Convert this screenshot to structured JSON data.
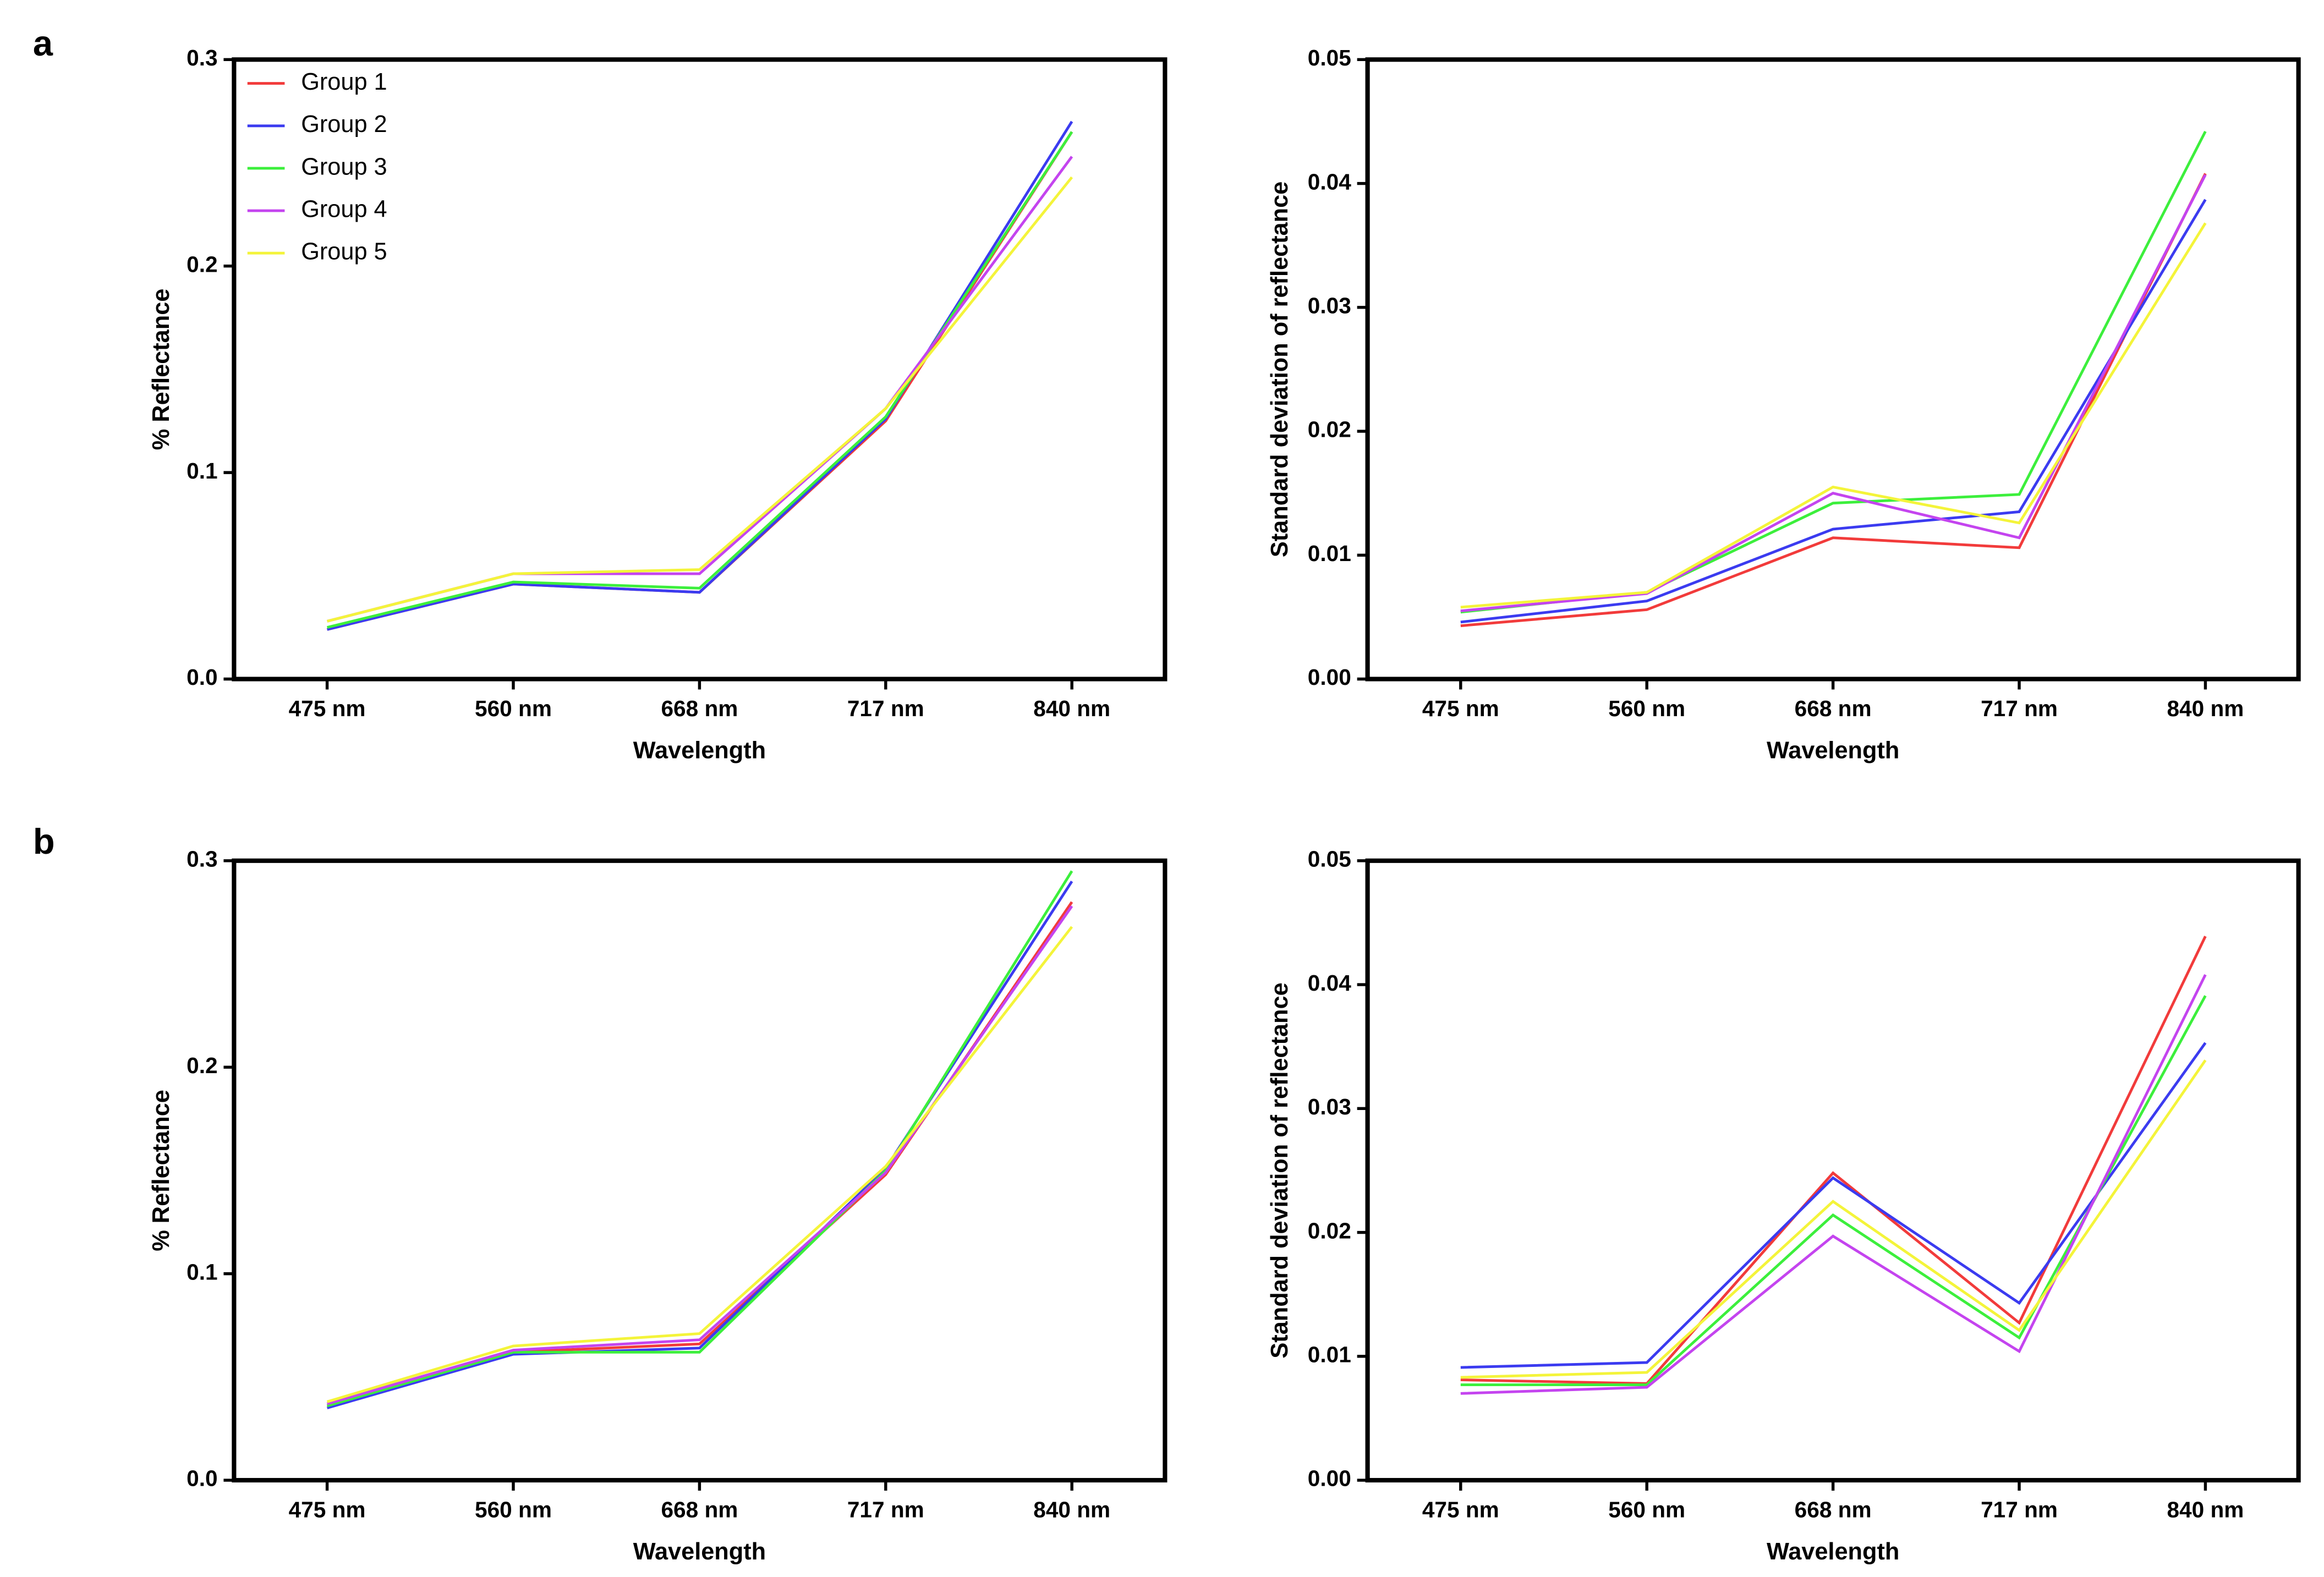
{
  "panel_labels": [
    "a",
    "b"
  ],
  "chart_data": [
    {
      "type": "line",
      "x_label": "Wavelength",
      "y_label": "% Reflectance",
      "categories": [
        "475 nm",
        "560 nm",
        "668 nm",
        "717 nm",
        "840 nm"
      ],
      "ylim": [
        0,
        0.3
      ],
      "yticks": [
        {
          "value": 0,
          "label": "0.0"
        },
        0.1,
        0.2,
        0.3
      ],
      "legend": "upper left",
      "series": [
        {
          "name": "Group 1",
          "color": "#f23b3b",
          "values": [
            0.024,
            0.046,
            0.042,
            0.125,
            0.265
          ]
        },
        {
          "name": "Group 2",
          "color": "#3b3bf0",
          "values": [
            0.024,
            0.046,
            0.042,
            0.126,
            0.27
          ]
        },
        {
          "name": "Group 3",
          "color": "#3cef3c",
          "values": [
            0.025,
            0.047,
            0.044,
            0.127,
            0.265
          ]
        },
        {
          "name": "Group 4",
          "color": "#c444ef",
          "values": [
            0.028,
            0.051,
            0.051,
            0.131,
            0.253
          ]
        },
        {
          "name": "Group 5",
          "color": "#f4f43a",
          "values": [
            0.028,
            0.051,
            0.053,
            0.131,
            0.243
          ]
        }
      ]
    },
    {
      "type": "line",
      "x_label": "Wavelength",
      "y_label": "Standard deviation of reflectance",
      "categories": [
        "475 nm",
        "560 nm",
        "668 nm",
        "717 nm",
        "840 nm"
      ],
      "ylim": [
        0,
        0.05
      ],
      "yticks": [
        {
          "value": 0,
          "label": "0.00"
        },
        0.01,
        0.02,
        0.03,
        0.04,
        0.05
      ],
      "series": [
        {
          "color": "#f23b3b",
          "values": [
            0.0043,
            0.0056,
            0.0114,
            0.0106,
            0.0408
          ]
        },
        {
          "color": "#3b3bf0",
          "values": [
            0.0046,
            0.0063,
            0.0121,
            0.0135,
            0.0387
          ]
        },
        {
          "color": "#3cef3c",
          "values": [
            0.0054,
            0.007,
            0.0142,
            0.0149,
            0.0442
          ]
        },
        {
          "color": "#c444ef",
          "values": [
            0.0055,
            0.0069,
            0.015,
            0.0114,
            0.0407
          ]
        },
        {
          "color": "#f4f43a",
          "values": [
            0.0058,
            0.007,
            0.0155,
            0.0126,
            0.0368
          ]
        }
      ]
    },
    {
      "type": "line",
      "x_label": "Wavelength",
      "y_label": "% Reflectance",
      "categories": [
        "475 nm",
        "560 nm",
        "668 nm",
        "717 nm",
        "840 nm"
      ],
      "ylim": [
        0,
        0.3
      ],
      "yticks": [
        {
          "value": 0,
          "label": "0.0"
        },
        0.1,
        0.2,
        0.3
      ],
      "series": [
        {
          "color": "#f23b3b",
          "values": [
            0.036,
            0.062,
            0.066,
            0.148,
            0.28
          ]
        },
        {
          "color": "#3b3bf0",
          "values": [
            0.035,
            0.061,
            0.064,
            0.151,
            0.29
          ]
        },
        {
          "color": "#3cef3c",
          "values": [
            0.036,
            0.062,
            0.062,
            0.15,
            0.295
          ]
        },
        {
          "color": "#c444ef",
          "values": [
            0.037,
            0.063,
            0.068,
            0.149,
            0.278
          ]
        },
        {
          "color": "#f4f43a",
          "values": [
            0.038,
            0.065,
            0.071,
            0.152,
            0.268
          ]
        }
      ]
    },
    {
      "type": "line",
      "x_label": "Wavelength",
      "y_label": "Standard deviation of reflectance",
      "categories": [
        "475 nm",
        "560 nm",
        "668 nm",
        "717 nm",
        "840 nm"
      ],
      "ylim": [
        0,
        0.05
      ],
      "yticks": [
        {
          "value": 0,
          "label": "0.00"
        },
        0.01,
        0.02,
        0.03,
        0.04,
        0.05
      ],
      "series": [
        {
          "color": "#f23b3b",
          "values": [
            0.0081,
            0.0078,
            0.0248,
            0.0127,
            0.0439
          ]
        },
        {
          "color": "#3b3bf0",
          "values": [
            0.0091,
            0.0095,
            0.0244,
            0.0143,
            0.0353
          ]
        },
        {
          "color": "#3cef3c",
          "values": [
            0.0077,
            0.0077,
            0.0214,
            0.0115,
            0.0391
          ]
        },
        {
          "color": "#c444ef",
          "values": [
            0.007,
            0.0075,
            0.0197,
            0.0104,
            0.0408
          ]
        },
        {
          "color": "#f4f43a",
          "values": [
            0.0083,
            0.0087,
            0.0225,
            0.0121,
            0.0339
          ]
        }
      ]
    }
  ]
}
